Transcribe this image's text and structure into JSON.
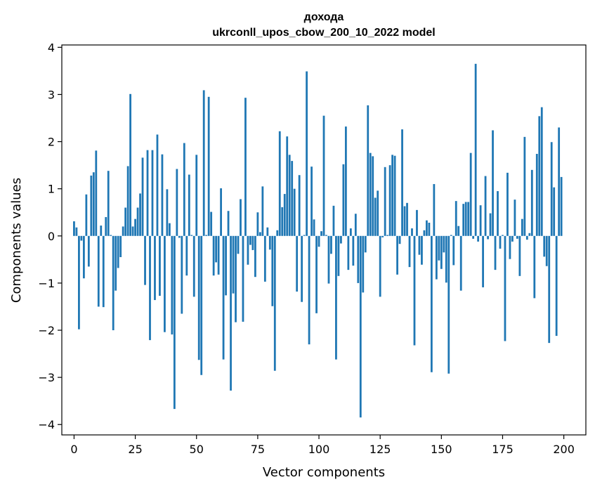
{
  "chart_data": {
    "type": "bar",
    "title": "доходa",
    "subtitle": "ukrconll_upos_cbow_200_10_2022 model",
    "xlabel": "Vector components",
    "ylabel": "Components values",
    "xlim": [
      -5,
      209
    ],
    "ylim": [
      -4.22,
      4.05
    ],
    "xticks": [
      0,
      25,
      50,
      75,
      100,
      125,
      150,
      175,
      200
    ],
    "yticks": [
      -4,
      -3,
      -2,
      -1,
      0,
      1,
      2,
      3,
      4
    ],
    "xtick_labels": [
      "0",
      "25",
      "50",
      "75",
      "100",
      "125",
      "150",
      "175",
      "200"
    ],
    "ytick_labels": [
      "−4",
      "−3",
      "−2",
      "−1",
      "0",
      "1",
      "2",
      "3",
      "4"
    ],
    "bar_color": "#1f77b4",
    "x": [
      0,
      1,
      2,
      3,
      4,
      5,
      6,
      7,
      8,
      9,
      10,
      11,
      12,
      13,
      14,
      15,
      16,
      17,
      18,
      19,
      20,
      21,
      22,
      23,
      24,
      25,
      26,
      27,
      28,
      29,
      30,
      31,
      32,
      33,
      34,
      35,
      36,
      37,
      38,
      39,
      40,
      41,
      42,
      43,
      44,
      45,
      46,
      47,
      48,
      49,
      50,
      51,
      52,
      53,
      54,
      55,
      56,
      57,
      58,
      59,
      60,
      61,
      62,
      63,
      64,
      65,
      66,
      67,
      68,
      69,
      70,
      71,
      72,
      73,
      74,
      75,
      76,
      77,
      78,
      79,
      80,
      81,
      82,
      83,
      84,
      85,
      86,
      87,
      88,
      89,
      90,
      91,
      92,
      93,
      94,
      95,
      96,
      97,
      98,
      99,
      100,
      101,
      102,
      103,
      104,
      105,
      106,
      107,
      108,
      109,
      110,
      111,
      112,
      113,
      114,
      115,
      116,
      117,
      118,
      119,
      120,
      121,
      122,
      123,
      124,
      125,
      126,
      127,
      128,
      129,
      130,
      131,
      132,
      133,
      134,
      135,
      136,
      137,
      138,
      139,
      140,
      141,
      142,
      143,
      144,
      145,
      146,
      147,
      148,
      149,
      150,
      151,
      152,
      153,
      154,
      155,
      156,
      157,
      158,
      159,
      160,
      161,
      162,
      163,
      164,
      165,
      166,
      167,
      168,
      169,
      170,
      171,
      172,
      173,
      174,
      175,
      176,
      177,
      178,
      179,
      180,
      181,
      182,
      183,
      184,
      185,
      186,
      187,
      188,
      189,
      190,
      191,
      192,
      193,
      194,
      195,
      196,
      197,
      198,
      199
    ],
    "values": [
      0.31,
      0.18,
      -1.98,
      -0.1,
      -0.9,
      0.88,
      -0.65,
      1.28,
      1.35,
      1.81,
      -1.5,
      0.22,
      -1.51,
      0.4,
      1.38,
      0.02,
      -2.0,
      -1.16,
      -0.68,
      -0.45,
      0.2,
      0.6,
      1.48,
      3.01,
      0.2,
      0.36,
      0.6,
      0.9,
      1.66,
      -1.04,
      1.82,
      -2.21,
      1.82,
      -1.36,
      2.15,
      -1.27,
      1.73,
      -2.04,
      0.99,
      0.27,
      -2.09,
      -3.67,
      1.42,
      -0.04,
      -1.65,
      1.97,
      -0.84,
      1.3,
      0.02,
      -1.29,
      1.72,
      -2.63,
      -2.95,
      3.09,
      0.02,
      2.95,
      0.51,
      -0.84,
      -0.56,
      -0.82,
      1.01,
      -2.62,
      -1.26,
      0.53,
      -3.28,
      -1.22,
      -1.83,
      -0.38,
      0.78,
      -1.82,
      2.93,
      -0.61,
      -0.19,
      -0.3,
      -0.87,
      0.5,
      0.08,
      1.05,
      -0.97,
      0.18,
      -0.29,
      -1.49,
      -2.86,
      0.12,
      2.22,
      0.61,
      0.89,
      2.11,
      1.72,
      1.59,
      1.0,
      -1.18,
      1.29,
      -1.4,
      0.02,
      3.49,
      -2.3,
      1.47,
      0.35,
      -1.64,
      -0.23,
      0.1,
      2.55,
      0.02,
      -1.01,
      -0.38,
      0.64,
      -2.62,
      -0.85,
      -0.16,
      1.52,
      2.32,
      -0.72,
      0.16,
      -0.63,
      0.47,
      -1.0,
      -3.85,
      -1.2,
      -0.35,
      2.77,
      1.76,
      1.69,
      0.81,
      0.96,
      -1.29,
      -0.03,
      1.46,
      0.02,
      1.5,
      1.72,
      1.7,
      -0.82,
      -0.17,
      2.26,
      0.63,
      0.7,
      -0.66,
      0.16,
      -2.32,
      0.55,
      -0.4,
      -0.61,
      0.12,
      0.33,
      0.28,
      -2.89,
      1.1,
      -0.92,
      -0.52,
      -0.7,
      -0.35,
      -0.99,
      -2.92,
      0.02,
      -0.62,
      0.74,
      0.21,
      -1.16,
      0.68,
      0.72,
      0.72,
      1.76,
      -0.06,
      3.65,
      -0.12,
      0.65,
      -1.09,
      1.27,
      -0.07,
      0.48,
      2.24,
      -0.72,
      0.95,
      -0.27,
      0.02,
      -2.23,
      1.34,
      -0.49,
      -0.12,
      0.77,
      -0.06,
      -0.85,
      0.36,
      2.1,
      -0.08,
      0.06,
      1.4,
      -1.32,
      1.74,
      2.54,
      2.73,
      -0.44,
      -0.64,
      -2.27,
      1.99,
      1.03,
      -2.12,
      2.3,
      1.25
    ]
  }
}
